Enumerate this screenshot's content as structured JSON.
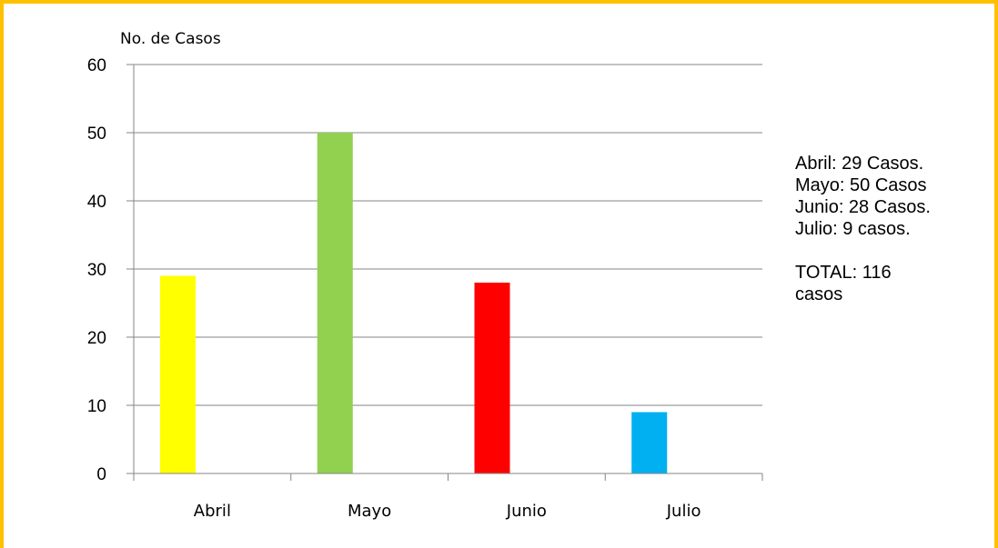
{
  "chart_data": {
    "type": "bar",
    "ylabel": "No. de Casos",
    "categories": [
      "Abril",
      "Mayo",
      "Junio",
      "Julio"
    ],
    "values": [
      29,
      50,
      28,
      9
    ],
    "colors": [
      "#ffff00",
      "#92d050",
      "#ff0000",
      "#00b0f0"
    ],
    "ylim": [
      0,
      60
    ],
    "yticks": [
      0,
      10,
      20,
      30,
      40,
      50,
      60
    ],
    "grid": true,
    "legend": "none",
    "annotations": [
      "Abril: 29 Casos.",
      "Mayo: 50 Casos",
      "Junio: 28 Casos.",
      "Julio: 9 casos.",
      "TOTAL: 116 casos"
    ]
  },
  "style": {
    "frame_color": "#ffc000",
    "grid_color": "#868686",
    "axis_color": "#868686"
  }
}
